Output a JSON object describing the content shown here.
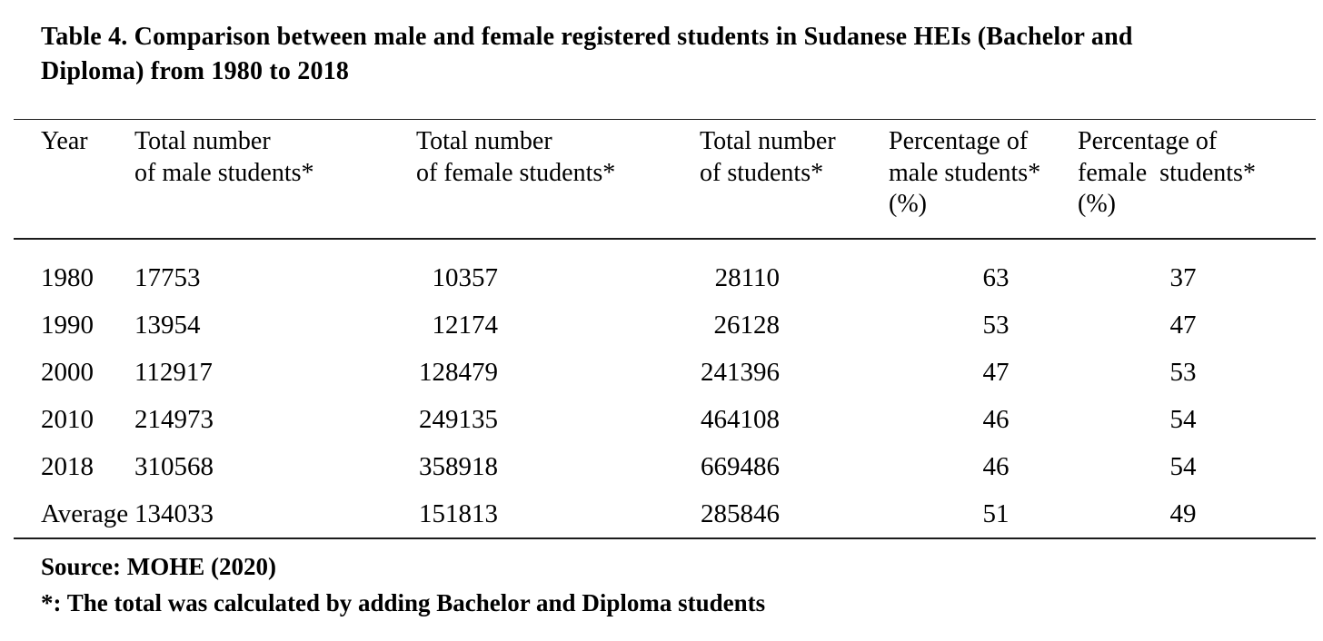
{
  "title": "Table 4. Comparison between male and female registered students in Sudanese HEIs (Bachelor and\nDiploma) from 1980 to 2018",
  "table": {
    "headers": [
      "Year",
      "Total number\nof male students*",
      "Total number\nof female students*",
      "Total number\nof students*",
      "Percentage of\nmale students*\n(%)",
      "Percentage of\nfemale  students*\n(%)"
    ],
    "rows": [
      [
        "1980",
        "17753",
        "10357",
        "28110",
        "63",
        "37"
      ],
      [
        "1990",
        "13954",
        "12174",
        "26128",
        "53",
        "47"
      ],
      [
        "2000",
        "112917",
        "128479",
        "241396",
        "47",
        "53"
      ],
      [
        "2010",
        "214973",
        "249135",
        "464108",
        "46",
        "54"
      ],
      [
        "2018",
        "310568",
        "358918",
        "669486",
        "46",
        "54"
      ],
      [
        "Average",
        "134033",
        "151813",
        "285846",
        "51",
        "49"
      ]
    ]
  },
  "footer": {
    "source": "Source: MOHE (2020)",
    "note": "*: The total was calculated by adding Bachelor and Diploma students"
  },
  "colors": {
    "text": "#000000",
    "rule": "#1c1c1c",
    "background": "#ffffff"
  }
}
